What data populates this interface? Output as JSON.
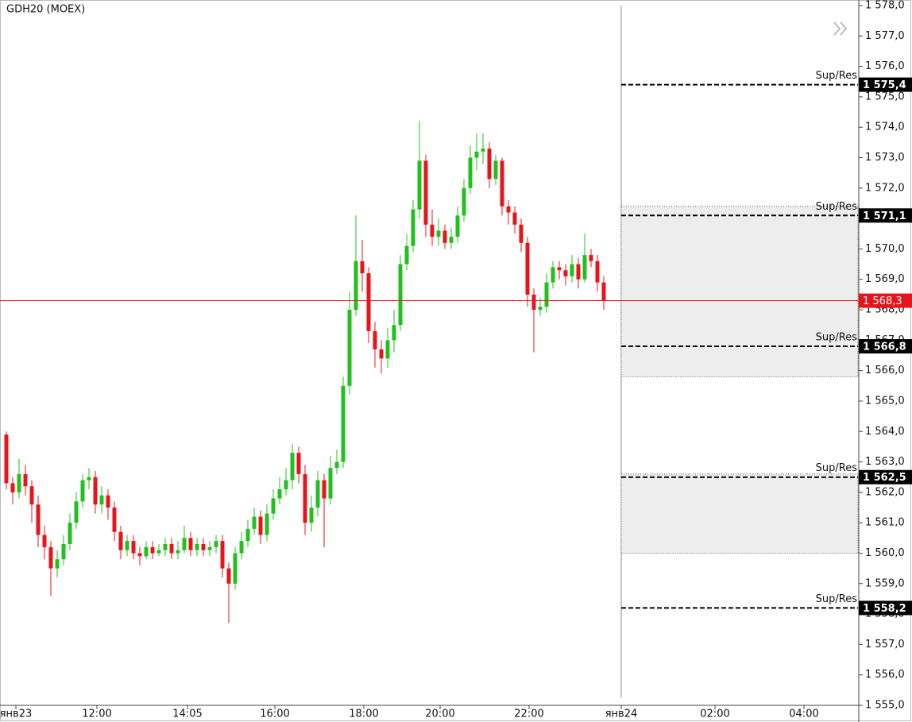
{
  "chart_data": {
    "type": "candlestick",
    "title": "GDH20 (MOEX)",
    "x": [
      0,
      1,
      2,
      3,
      4,
      5,
      6,
      7,
      8,
      9,
      10,
      11,
      12,
      13,
      14,
      15,
      16,
      17,
      18,
      19,
      20,
      21,
      22,
      23,
      24,
      25,
      26,
      27,
      28,
      29,
      30,
      31,
      32,
      33,
      34,
      35,
      36,
      37,
      38,
      39,
      40,
      41,
      42,
      43,
      44,
      45,
      46,
      47,
      48,
      49,
      50,
      51,
      52,
      53,
      54,
      55,
      56,
      57,
      58,
      59,
      60,
      61,
      62,
      63,
      64,
      65,
      66,
      67,
      68,
      69,
      70,
      71,
      72,
      73,
      74,
      75,
      76,
      77,
      78,
      79,
      80,
      81,
      82,
      83,
      84,
      85,
      86,
      87,
      88,
      89,
      90,
      91,
      92,
      93,
      94
    ],
    "open": [
      1563.9,
      1562.3,
      1562.0,
      1562.6,
      1562.2,
      1561.6,
      1560.6,
      1560.2,
      1559.5,
      1559.8,
      1560.3,
      1561.0,
      1561.7,
      1562.4,
      1562.5,
      1561.6,
      1561.9,
      1561.5,
      1560.7,
      1560.1,
      1560.4,
      1560.0,
      1559.9,
      1560.2,
      1560.0,
      1560.1,
      1560.3,
      1560.0,
      1560.1,
      1560.5,
      1560.1,
      1560.3,
      1560.1,
      1560.2,
      1560.4,
      1559.5,
      1559.0,
      1560.0,
      1560.4,
      1560.8,
      1561.2,
      1560.6,
      1561.3,
      1561.8,
      1562.1,
      1562.4,
      1563.3,
      1562.6,
      1561.0,
      1561.5,
      1562.4,
      1561.8,
      1562.8,
      1563.0,
      1565.5,
      1568.0,
      1569.6,
      1569.2,
      1567.3,
      1566.7,
      1566.4,
      1567.0,
      1567.5,
      1569.5,
      1570.1,
      1571.3,
      1572.9,
      1570.8,
      1570.4,
      1570.6,
      1570.2,
      1570.4,
      1571.1,
      1572.0,
      1573.0,
      1573.2,
      1573.3,
      1572.3,
      1572.9,
      1571.4,
      1571.2,
      1570.8,
      1570.2,
      1568.5,
      1568.0,
      1568.1,
      1568.9,
      1569.4,
      1569.3,
      1569.1,
      1569.5,
      1569.0,
      1569.8,
      1569.6,
      1568.9
    ],
    "high": [
      1564.0,
      1562.5,
      1563.1,
      1562.9,
      1562.4,
      1561.9,
      1560.9,
      1560.4,
      1560.1,
      1560.6,
      1561.3,
      1562.0,
      1562.6,
      1562.8,
      1562.7,
      1562.2,
      1562.1,
      1561.7,
      1560.9,
      1560.6,
      1560.6,
      1560.2,
      1560.4,
      1560.4,
      1560.3,
      1560.5,
      1560.5,
      1560.4,
      1560.9,
      1560.7,
      1560.5,
      1560.5,
      1560.4,
      1560.6,
      1560.6,
      1559.7,
      1560.2,
      1560.7,
      1561.1,
      1561.5,
      1561.4,
      1561.6,
      1562.1,
      1562.5,
      1562.8,
      1563.6,
      1563.5,
      1562.9,
      1561.9,
      1562.7,
      1562.6,
      1563.2,
      1563.4,
      1565.8,
      1568.6,
      1571.1,
      1570.3,
      1569.4,
      1567.6,
      1567.0,
      1567.4,
      1568.0,
      1569.8,
      1570.5,
      1571.6,
      1574.2,
      1573.1,
      1571.3,
      1571.0,
      1570.8,
      1570.7,
      1571.4,
      1572.3,
      1573.4,
      1573.8,
      1573.8,
      1573.5,
      1573.1,
      1573.0,
      1571.6,
      1571.4,
      1571.0,
      1570.4,
      1568.7,
      1568.4,
      1569.2,
      1569.6,
      1569.6,
      1569.5,
      1569.8,
      1569.7,
      1570.5,
      1570.0,
      1569.8,
      1569.1
    ],
    "low": [
      1562.1,
      1561.6,
      1561.8,
      1561.9,
      1561.0,
      1560.2,
      1559.8,
      1558.6,
      1559.2,
      1559.6,
      1560.1,
      1560.8,
      1561.5,
      1562.1,
      1561.3,
      1561.3,
      1561.1,
      1560.4,
      1559.8,
      1559.9,
      1559.8,
      1559.6,
      1559.8,
      1559.8,
      1559.9,
      1559.9,
      1559.8,
      1559.8,
      1560.0,
      1559.9,
      1559.9,
      1559.9,
      1559.9,
      1560.0,
      1559.2,
      1557.7,
      1558.8,
      1559.8,
      1560.2,
      1560.6,
      1560.3,
      1560.4,
      1561.1,
      1561.6,
      1561.9,
      1562.1,
      1562.3,
      1560.6,
      1560.7,
      1561.2,
      1560.2,
      1561.6,
      1562.6,
      1562.8,
      1565.2,
      1567.8,
      1568.6,
      1566.9,
      1566.1,
      1565.9,
      1566.1,
      1566.6,
      1567.3,
      1569.3,
      1569.9,
      1571.0,
      1570.4,
      1570.1,
      1570.1,
      1570.0,
      1570.0,
      1570.2,
      1570.9,
      1571.8,
      1572.6,
      1572.8,
      1572.0,
      1572.1,
      1571.1,
      1570.8,
      1570.5,
      1569.9,
      1568.1,
      1566.6,
      1567.8,
      1567.9,
      1568.7,
      1569.0,
      1568.8,
      1568.9,
      1568.7,
      1568.9,
      1569.4,
      1568.6,
      1568.0
    ],
    "close": [
      1562.3,
      1562.0,
      1562.6,
      1562.2,
      1561.6,
      1560.6,
      1560.2,
      1559.5,
      1559.8,
      1560.3,
      1561.0,
      1561.7,
      1562.4,
      1562.5,
      1561.6,
      1561.9,
      1561.5,
      1560.7,
      1560.1,
      1560.4,
      1560.0,
      1559.9,
      1560.2,
      1560.0,
      1560.1,
      1560.3,
      1560.0,
      1560.1,
      1560.5,
      1560.1,
      1560.3,
      1560.1,
      1560.2,
      1560.4,
      1559.5,
      1559.0,
      1560.0,
      1560.4,
      1560.8,
      1561.2,
      1560.6,
      1561.3,
      1561.8,
      1562.1,
      1562.4,
      1563.3,
      1562.6,
      1561.0,
      1561.5,
      1562.4,
      1561.8,
      1562.8,
      1563.0,
      1565.5,
      1568.0,
      1569.6,
      1569.2,
      1567.3,
      1566.7,
      1566.4,
      1567.0,
      1567.5,
      1569.5,
      1570.1,
      1571.3,
      1572.9,
      1570.8,
      1570.4,
      1570.6,
      1570.2,
      1570.4,
      1571.1,
      1572.0,
      1573.0,
      1573.2,
      1573.3,
      1572.3,
      1572.9,
      1571.4,
      1571.2,
      1570.8,
      1570.2,
      1568.5,
      1568.0,
      1568.1,
      1568.9,
      1569.4,
      1569.3,
      1569.1,
      1569.5,
      1569.0,
      1569.8,
      1569.6,
      1568.9,
      1568.3
    ],
    "up_color": "#22c01e",
    "down_color": "#e8141b",
    "xlim": [
      -1,
      134
    ],
    "xticks": [
      {
        "value": 1.5,
        "label": "янв23"
      },
      {
        "value": 14.25,
        "label": "12:00"
      },
      {
        "value": 28.5,
        "label": "14:05"
      },
      {
        "value": 42.25,
        "label": "16:00"
      },
      {
        "value": 56.25,
        "label": "18:00"
      },
      {
        "value": 68.25,
        "label": "20:00"
      },
      {
        "value": 82.25,
        "label": "22:00"
      },
      {
        "value": 96.75,
        "label": "янв24"
      },
      {
        "value": 111.5,
        "label": "02:00"
      },
      {
        "value": 125.5,
        "label": "04:00"
      }
    ],
    "ylim": [
      1555,
      1578
    ],
    "yticks": [
      {
        "value": 1555,
        "label": "1 555,0"
      },
      {
        "value": 1556,
        "label": "1 556,0"
      },
      {
        "value": 1557,
        "label": "1 557,0"
      },
      {
        "value": 1558,
        "label": "1 558,0"
      },
      {
        "value": 1559,
        "label": "1 559,0"
      },
      {
        "value": 1560,
        "label": "1 560,0"
      },
      {
        "value": 1561,
        "label": "1 561,0"
      },
      {
        "value": 1562,
        "label": "1 562,0"
      },
      {
        "value": 1563,
        "label": "1 563,0"
      },
      {
        "value": 1564,
        "label": "1 564,0"
      },
      {
        "value": 1565,
        "label": "1 565,0"
      },
      {
        "value": 1566,
        "label": "1 566,0"
      },
      {
        "value": 1567,
        "label": "1 567,0"
      },
      {
        "value": 1568,
        "label": "1 568,0"
      },
      {
        "value": 1569,
        "label": "1 569,0"
      },
      {
        "value": 1570,
        "label": "1 570,0"
      },
      {
        "value": 1571,
        "label": "1 571,0"
      },
      {
        "value": 1572,
        "label": "1 572,0"
      },
      {
        "value": 1573,
        "label": "1 573,0"
      },
      {
        "value": 1574,
        "label": "1 574,0"
      },
      {
        "value": 1575,
        "label": "1 575,0"
      },
      {
        "value": 1576,
        "label": "1 576,0"
      },
      {
        "value": 1577,
        "label": "1 577,0"
      },
      {
        "value": 1578,
        "label": "1 578,0"
      }
    ],
    "zones": [
      {
        "low": 1565.8,
        "high": 1571.4
      },
      {
        "low": 1560.0,
        "high": 1562.6
      }
    ],
    "levels": [
      {
        "name": "Sup/Res",
        "value": 1575.4,
        "label": "1 575,4"
      },
      {
        "name": "Sup/Res",
        "value": 1571.1,
        "label": "1 571,1"
      },
      {
        "name": "Sup/Res",
        "value": 1566.8,
        "label": "1 566,8"
      },
      {
        "name": "Sup/Res",
        "value": 1562.5,
        "label": "1 562,5"
      },
      {
        "name": "Sup/Res",
        "value": 1558.2,
        "label": "1 558,2"
      }
    ],
    "last_price": {
      "value": 1568.3,
      "label": "1 568,3",
      "color": "#e8141b"
    }
  }
}
